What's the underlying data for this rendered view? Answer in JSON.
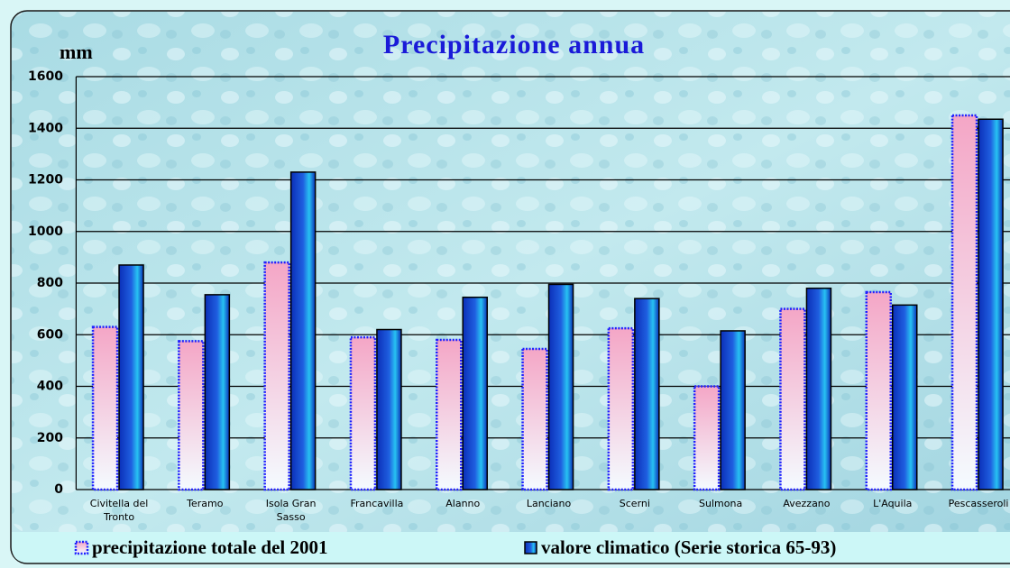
{
  "chart_data": {
    "type": "bar",
    "title": "Precipitazione annua",
    "y_axis_label": "mm",
    "categories": [
      "Civitella del Tronto",
      "Teramo",
      "Isola Gran Sasso",
      "Francavilla",
      "Alanno",
      "Lanciano",
      "Scerni",
      "Sulmona",
      "Avezzano",
      "L'Aquila",
      "Pescasseroli"
    ],
    "series": [
      {
        "name": "precipitazione totale del 2001",
        "color": "#f4a6c6",
        "values": [
          630,
          575,
          880,
          590,
          580,
          545,
          625,
          400,
          700,
          765,
          1450
        ]
      },
      {
        "name": "valore climatico (Serie storica 65-93)",
        "color": "#1f5fe0",
        "values": [
          870,
          755,
          1230,
          620,
          745,
          795,
          740,
          615,
          780,
          715,
          1435
        ]
      }
    ],
    "ylim": [
      0,
      1600
    ],
    "yticks": [
      0,
      200,
      400,
      600,
      800,
      1000,
      1200,
      1400,
      1600
    ],
    "grid": true
  }
}
